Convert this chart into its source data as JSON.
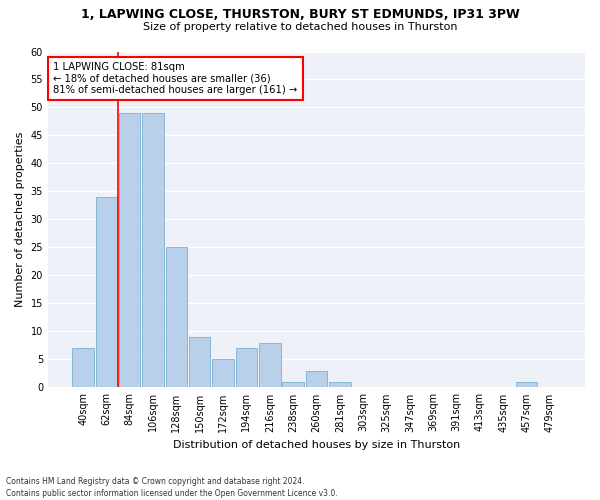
{
  "title1": "1, LAPWING CLOSE, THURSTON, BURY ST EDMUNDS, IP31 3PW",
  "title2": "Size of property relative to detached houses in Thurston",
  "xlabel": "Distribution of detached houses by size in Thurston",
  "ylabel": "Number of detached properties",
  "categories": [
    "40sqm",
    "62sqm",
    "84sqm",
    "106sqm",
    "128sqm",
    "150sqm",
    "172sqm",
    "194sqm",
    "216sqm",
    "238sqm",
    "260sqm",
    "281sqm",
    "303sqm",
    "325sqm",
    "347sqm",
    "369sqm",
    "391sqm",
    "413sqm",
    "435sqm",
    "457sqm",
    "479sqm"
  ],
  "values": [
    7,
    34,
    49,
    49,
    25,
    9,
    5,
    7,
    8,
    1,
    3,
    1,
    0,
    0,
    0,
    0,
    0,
    0,
    0,
    1,
    0
  ],
  "bar_color": "#b8d0ea",
  "bar_edge_color": "#7aafd4",
  "redline_index": 2,
  "annotation_text": "1 LAPWING CLOSE: 81sqm\n← 18% of detached houses are smaller (36)\n81% of semi-detached houses are larger (161) →",
  "ylim": [
    0,
    60
  ],
  "yticks": [
    0,
    5,
    10,
    15,
    20,
    25,
    30,
    35,
    40,
    45,
    50,
    55,
    60
  ],
  "footer": "Contains HM Land Registry data © Crown copyright and database right 2024.\nContains public sector information licensed under the Open Government Licence v3.0.",
  "bg_color": "#eef2f8",
  "fig_bg_color": "#ffffff",
  "grid_color": "#ffffff",
  "title1_fontsize": 9,
  "title2_fontsize": 8,
  "ylabel_fontsize": 8,
  "xlabel_fontsize": 8,
  "tick_fontsize": 7,
  "footer_fontsize": 5.5
}
